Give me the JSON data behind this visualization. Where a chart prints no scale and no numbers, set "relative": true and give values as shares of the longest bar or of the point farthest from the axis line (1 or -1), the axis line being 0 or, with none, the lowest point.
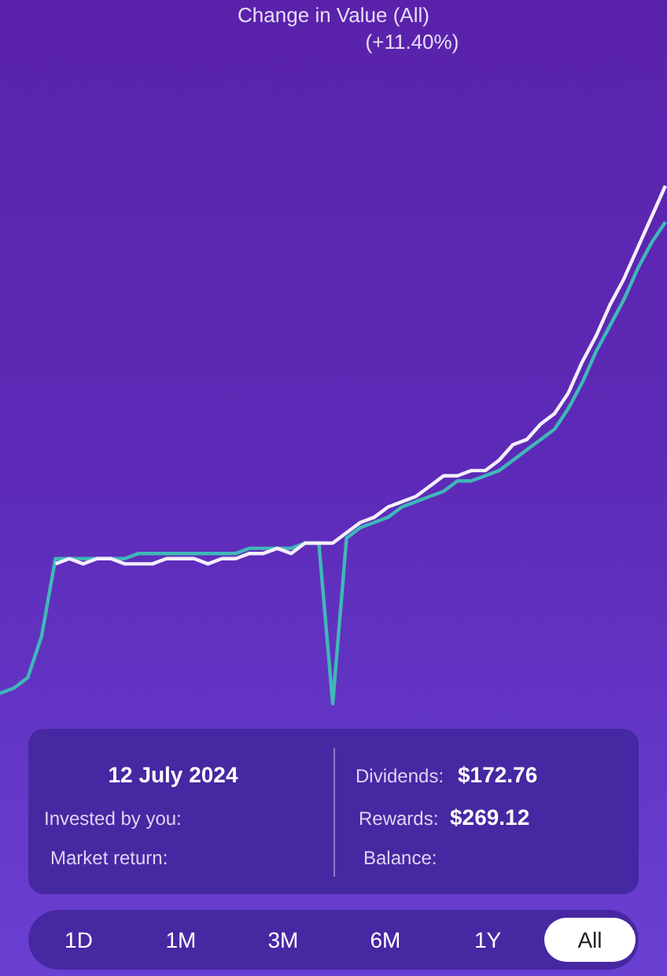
{
  "chart_data": {
    "type": "line",
    "relative": true,
    "title": "Change in Value (All)",
    "subtitle": "(+11.40%)",
    "categories": [
      null,
      null,
      null,
      null,
      null,
      null,
      null,
      null,
      null,
      null,
      null,
      null,
      null,
      null,
      null,
      null,
      null,
      null,
      null,
      null,
      null,
      null,
      null,
      null,
      null,
      null,
      null,
      null,
      null,
      null,
      null,
      null,
      null,
      null,
      null,
      null,
      null,
      null,
      null,
      null,
      null,
      null,
      null,
      null,
      null,
      null,
      null,
      null,
      null
    ],
    "series": [
      {
        "color": "#f4eefc",
        "values": [
          null,
          null,
          null,
          null,
          0.27,
          0.28,
          0.27,
          0.28,
          0.28,
          0.27,
          0.27,
          0.27,
          0.28,
          0.28,
          0.28,
          0.27,
          0.28,
          0.28,
          0.29,
          0.29,
          0.3,
          0.29,
          0.31,
          0.31,
          0.31,
          0.33,
          0.35,
          0.36,
          0.38,
          0.39,
          0.4,
          0.42,
          0.44,
          0.44,
          0.45,
          0.45,
          0.47,
          0.5,
          0.51,
          0.54,
          0.56,
          0.6,
          0.66,
          0.71,
          0.77,
          0.82,
          0.88,
          0.94,
          1
        ]
      },
      {
        "color": "#3fb8b8",
        "values": [
          0.02,
          0.03,
          0.05,
          0.13,
          0.28,
          0.28,
          0.28,
          0.28,
          0.28,
          0.28,
          0.29,
          0.29,
          0.29,
          0.29,
          0.29,
          0.29,
          0.29,
          0.29,
          0.3,
          0.3,
          0.3,
          0.3,
          0.31,
          0.31,
          0,
          0.32,
          0.34,
          0.35,
          0.36,
          0.38,
          0.39,
          0.4,
          0.41,
          0.43,
          0.43,
          0.44,
          0.45,
          0.47,
          0.49,
          0.51,
          0.53,
          0.57,
          0.62,
          0.68,
          0.73,
          0.78,
          0.84,
          0.89,
          0.93
        ]
      }
    ],
    "annotations": [
      "12 July 2024",
      "Invested by you:",
      "Market return:",
      "Dividends:",
      "$172.76",
      "Rewards:",
      "$269.12",
      "Balance:",
      "1D",
      "1M",
      "3M",
      "6M",
      "1Y",
      "All"
    ]
  }
}
